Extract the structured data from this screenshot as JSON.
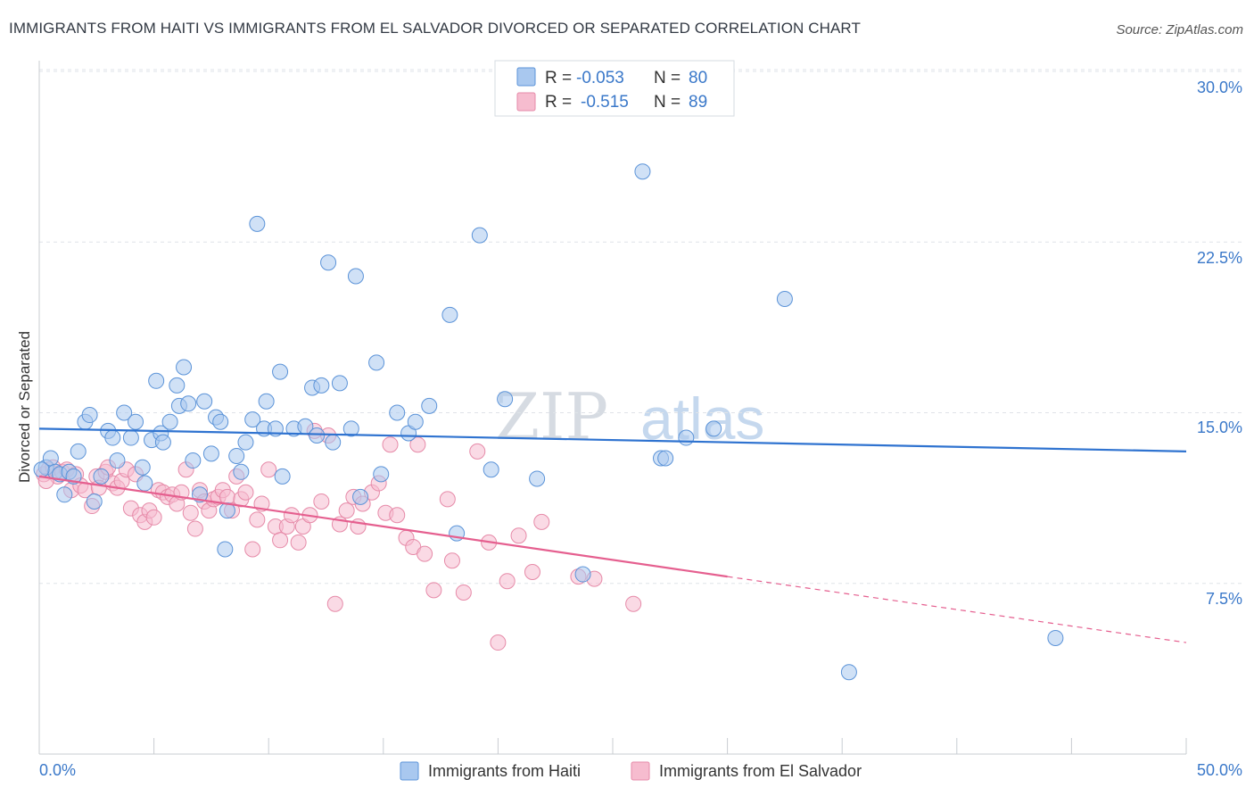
{
  "header": {
    "title": "IMMIGRANTS FROM HAITI VS IMMIGRANTS FROM EL SALVADOR DIVORCED OR SEPARATED CORRELATION CHART",
    "source": "Source: ZipAtlas.com"
  },
  "legend_top": {
    "r_label": "R =",
    "n_label": "N =",
    "haiti": {
      "r": "-0.053",
      "n": "80"
    },
    "elsalvador": {
      "r": "-0.515",
      "n": "89"
    }
  },
  "watermark": {
    "zip": "ZIP",
    "atlas": "atlas"
  },
  "colors": {
    "haiti_fill": "#a9c8ef",
    "haiti_stroke": "#5b93d8",
    "haiti_line": "#2f73d0",
    "elsal_fill": "#f6bccf",
    "elsal_stroke": "#e68aa8",
    "elsal_line": "#e55f8f",
    "grid": "#dfe3e8",
    "axis_text": "#3a78c9"
  },
  "chart_data": {
    "type": "scatter",
    "title": "IMMIGRANTS FROM HAITI VS IMMIGRANTS FROM EL SALVADOR DIVORCED OR SEPARATED CORRELATION CHART",
    "xlabel": "",
    "ylabel": "Divorced or Separated",
    "xlim": [
      0,
      50
    ],
    "ylim": [
      0,
      30.5
    ],
    "x_tick_labels": [
      "0.0%",
      "50.0%"
    ],
    "y_ticks": [
      7.5,
      15.0,
      22.5,
      30.0
    ],
    "y_tick_labels": [
      "7.5%",
      "15.0%",
      "22.5%",
      "30.0%"
    ],
    "grid": true,
    "legend_position": "top-center",
    "series": [
      {
        "name": "Immigrants from Haiti",
        "trend": {
          "x": [
            0,
            50
          ],
          "y": [
            14.3,
            13.3
          ]
        },
        "points": [
          [
            0.3,
            12.6
          ],
          [
            0.5,
            13.0
          ],
          [
            0.7,
            12.4
          ],
          [
            0.9,
            12.3
          ],
          [
            1.1,
            11.4
          ],
          [
            1.3,
            12.4
          ],
          [
            1.5,
            12.2
          ],
          [
            1.7,
            13.3
          ],
          [
            2.0,
            14.6
          ],
          [
            2.2,
            14.9
          ],
          [
            2.4,
            11.1
          ],
          [
            2.7,
            12.2
          ],
          [
            3.0,
            14.2
          ],
          [
            3.2,
            13.9
          ],
          [
            3.4,
            12.9
          ],
          [
            3.7,
            15.0
          ],
          [
            4.0,
            13.9
          ],
          [
            4.2,
            14.6
          ],
          [
            4.5,
            12.6
          ],
          [
            4.6,
            11.9
          ],
          [
            4.9,
            13.8
          ],
          [
            5.1,
            16.4
          ],
          [
            5.3,
            14.1
          ],
          [
            5.4,
            13.7
          ],
          [
            5.7,
            14.6
          ],
          [
            6.0,
            16.2
          ],
          [
            6.1,
            15.3
          ],
          [
            6.3,
            17.0
          ],
          [
            6.5,
            15.4
          ],
          [
            6.7,
            12.9
          ],
          [
            7.0,
            11.4
          ],
          [
            7.2,
            15.5
          ],
          [
            7.5,
            13.2
          ],
          [
            7.7,
            14.8
          ],
          [
            7.9,
            14.6
          ],
          [
            8.1,
            9.0
          ],
          [
            8.2,
            10.7
          ],
          [
            8.6,
            13.1
          ],
          [
            8.8,
            12.4
          ],
          [
            9.0,
            13.7
          ],
          [
            9.3,
            14.7
          ],
          [
            9.5,
            23.3
          ],
          [
            9.8,
            14.3
          ],
          [
            9.9,
            15.5
          ],
          [
            10.3,
            14.3
          ],
          [
            10.5,
            16.8
          ],
          [
            10.6,
            12.2
          ],
          [
            11.1,
            14.3
          ],
          [
            11.6,
            14.4
          ],
          [
            11.9,
            16.1
          ],
          [
            12.1,
            14.0
          ],
          [
            12.3,
            16.2
          ],
          [
            12.6,
            21.6
          ],
          [
            12.8,
            13.7
          ],
          [
            13.1,
            16.3
          ],
          [
            13.6,
            14.3
          ],
          [
            13.8,
            21.0
          ],
          [
            14.0,
            11.3
          ],
          [
            14.7,
            17.2
          ],
          [
            14.9,
            12.3
          ],
          [
            15.6,
            15.0
          ],
          [
            16.1,
            14.1
          ],
          [
            16.4,
            14.6
          ],
          [
            17.0,
            15.3
          ],
          [
            17.9,
            19.3
          ],
          [
            18.2,
            9.7
          ],
          [
            19.2,
            22.8
          ],
          [
            19.7,
            12.5
          ],
          [
            20.3,
            15.6
          ],
          [
            21.7,
            12.1
          ],
          [
            23.7,
            7.9
          ],
          [
            26.3,
            25.6
          ],
          [
            27.1,
            13.0
          ],
          [
            27.3,
            13.0
          ],
          [
            28.2,
            13.9
          ],
          [
            29.4,
            14.3
          ],
          [
            32.5,
            20.0
          ],
          [
            35.3,
            3.6
          ],
          [
            44.3,
            5.1
          ],
          [
            0.1,
            12.5
          ]
        ]
      },
      {
        "name": "Immigrants from El Salvador",
        "trend": {
          "x": [
            0,
            30.0
          ],
          "y": [
            12.2,
            7.8
          ]
        },
        "trend_dashed": {
          "x": [
            30.0,
            50
          ],
          "y": [
            7.8,
            4.9
          ]
        },
        "points": [
          [
            0.2,
            12.3
          ],
          [
            0.4,
            12.5
          ],
          [
            0.6,
            12.6
          ],
          [
            0.8,
            12.2
          ],
          [
            1.0,
            12.4
          ],
          [
            1.2,
            12.5
          ],
          [
            1.4,
            11.6
          ],
          [
            1.6,
            12.3
          ],
          [
            1.8,
            11.8
          ],
          [
            2.0,
            11.6
          ],
          [
            2.3,
            10.9
          ],
          [
            2.5,
            12.2
          ],
          [
            2.6,
            11.7
          ],
          [
            2.9,
            12.4
          ],
          [
            3.0,
            12.6
          ],
          [
            3.2,
            11.9
          ],
          [
            3.4,
            11.7
          ],
          [
            3.6,
            12.0
          ],
          [
            3.8,
            12.5
          ],
          [
            4.0,
            10.8
          ],
          [
            4.2,
            12.3
          ],
          [
            4.4,
            10.5
          ],
          [
            4.6,
            10.2
          ],
          [
            4.8,
            10.7
          ],
          [
            5.0,
            10.4
          ],
          [
            5.2,
            11.6
          ],
          [
            5.4,
            11.5
          ],
          [
            5.6,
            11.3
          ],
          [
            5.8,
            11.4
          ],
          [
            6.0,
            11.0
          ],
          [
            6.2,
            11.5
          ],
          [
            6.4,
            12.5
          ],
          [
            6.6,
            10.6
          ],
          [
            6.8,
            9.9
          ],
          [
            7.0,
            11.6
          ],
          [
            7.2,
            11.1
          ],
          [
            7.4,
            10.7
          ],
          [
            7.6,
            11.2
          ],
          [
            7.8,
            11.3
          ],
          [
            8.0,
            11.6
          ],
          [
            8.2,
            11.3
          ],
          [
            8.4,
            10.7
          ],
          [
            8.6,
            12.2
          ],
          [
            8.8,
            11.2
          ],
          [
            9.0,
            11.5
          ],
          [
            9.3,
            9.0
          ],
          [
            9.5,
            10.3
          ],
          [
            9.7,
            11.0
          ],
          [
            10.0,
            12.5
          ],
          [
            10.3,
            10.0
          ],
          [
            10.5,
            9.4
          ],
          [
            10.8,
            10.0
          ],
          [
            11.0,
            10.5
          ],
          [
            11.3,
            9.3
          ],
          [
            11.5,
            10.0
          ],
          [
            11.8,
            10.5
          ],
          [
            12.0,
            14.2
          ],
          [
            12.3,
            11.1
          ],
          [
            12.6,
            14.0
          ],
          [
            12.9,
            6.6
          ],
          [
            13.1,
            10.1
          ],
          [
            13.4,
            10.7
          ],
          [
            13.7,
            11.3
          ],
          [
            13.9,
            10.0
          ],
          [
            14.1,
            11.0
          ],
          [
            14.5,
            11.5
          ],
          [
            14.8,
            11.9
          ],
          [
            15.1,
            10.6
          ],
          [
            15.3,
            13.6
          ],
          [
            15.6,
            10.5
          ],
          [
            16.0,
            9.5
          ],
          [
            16.3,
            9.1
          ],
          [
            16.5,
            13.6
          ],
          [
            16.8,
            8.8
          ],
          [
            17.2,
            7.2
          ],
          [
            17.8,
            11.2
          ],
          [
            18.0,
            8.5
          ],
          [
            18.5,
            7.1
          ],
          [
            19.1,
            13.3
          ],
          [
            19.6,
            9.3
          ],
          [
            20.0,
            4.9
          ],
          [
            20.4,
            7.6
          ],
          [
            20.9,
            9.6
          ],
          [
            21.5,
            8.0
          ],
          [
            21.9,
            10.2
          ],
          [
            23.5,
            7.8
          ],
          [
            24.2,
            7.7
          ],
          [
            25.9,
            6.6
          ],
          [
            0.3,
            12.0
          ]
        ]
      }
    ]
  },
  "axis": {
    "y_title": "Divorced or Separated",
    "x_min_label": "0.0%",
    "x_max_label": "50.0%"
  },
  "bottom_legend": {
    "haiti": "Immigrants from Haiti",
    "elsalvador": "Immigrants from El Salvador"
  }
}
